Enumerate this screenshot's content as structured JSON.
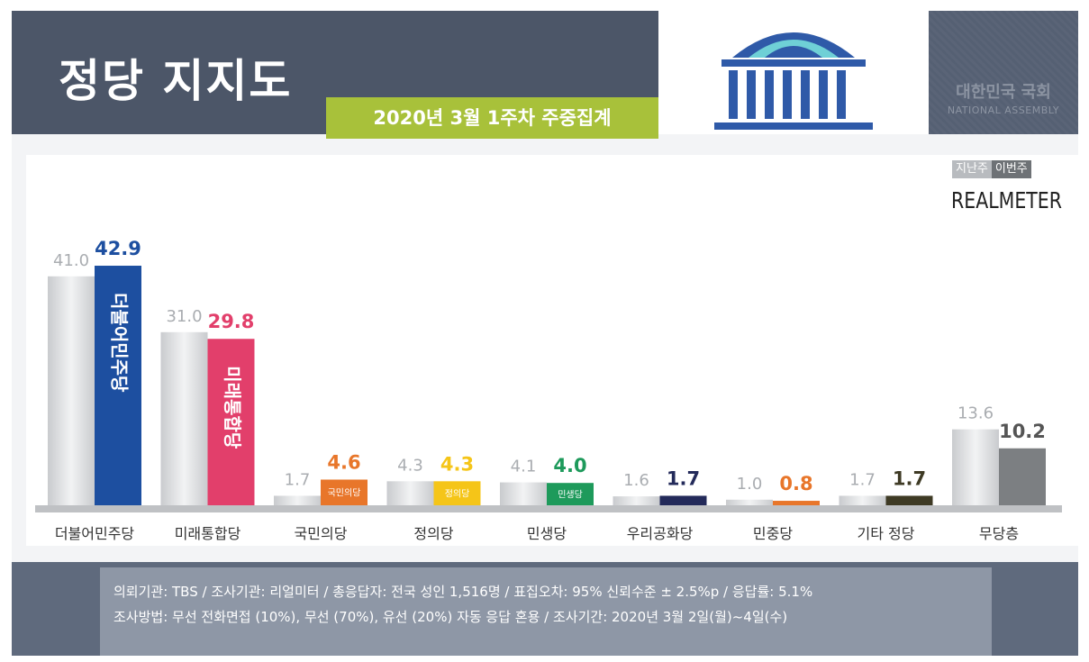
{
  "header": {
    "title": "정당 지지도",
    "subtitle": "2020년 3월 1주차 주중집계",
    "assembly_name_ko": "대한민국 국회",
    "assembly_name_en": "NATIONAL ASSEMBLY"
  },
  "legend": {
    "previous_label": "지난주",
    "current_label": "이번주",
    "brand": "REALMETER"
  },
  "colors": {
    "previous": "#cfd1d4",
    "deobureo": "#1d4fa0",
    "mirae": "#e23f6b",
    "kukmin": "#e8762a",
    "jeongui": "#f5c518",
    "minsaeng": "#1e9a5b",
    "uri": "#232a5a",
    "minjung": "#e8762a",
    "others": "#3e3a24",
    "independent": "#7c7f82"
  },
  "chart_data": {
    "type": "bar",
    "title": "정당 지지도",
    "subtitle": "2020년 3월 1주차 주중집계",
    "categories": [
      "더불어민주당",
      "미래통합당",
      "국민의당",
      "정의당",
      "민생당",
      "우리공화당",
      "민중당",
      "기타 정당",
      "무당층"
    ],
    "series": [
      {
        "name": "지난주",
        "values": [
          41.0,
          31.0,
          1.7,
          4.3,
          4.1,
          1.6,
          1.0,
          1.7,
          13.6
        ]
      },
      {
        "name": "이번주",
        "values": [
          42.9,
          29.8,
          4.6,
          4.3,
          4.0,
          1.7,
          0.8,
          1.7,
          10.2
        ]
      }
    ],
    "prev_labels": [
      "41.0",
      "31.0",
      "1.7",
      "4.3",
      "4.1",
      "1.6",
      "1.0",
      "1.7",
      "13.6"
    ],
    "curr_labels": [
      "42.9",
      "29.8",
      "4.6",
      "4.3",
      "4.0",
      "1.7",
      "0.8",
      "1.7",
      "10.2"
    ],
    "curr_label_colors": [
      "#1d4fa0",
      "#e23f6b",
      "#e8762a",
      "#f5c518",
      "#1e9a5b",
      "#232a5a",
      "#e8762a",
      "#3e3a24",
      "#555555"
    ],
    "bar_inner_labels": [
      "더불어민주당",
      "미래통합당",
      "국민의당",
      "정의당",
      "민생당",
      "",
      "",
      "",
      ""
    ],
    "ylim": [
      0,
      50
    ],
    "grid": false,
    "legend_position": "top-right"
  },
  "footer": {
    "line1": "의뢰기관:  TBS  /  조사기관:  리얼미터  /  총응답자:  전국 성인 1,516명  /  표집오차:  95% 신뢰수준 ± 2.5%p  /  응답률:  5.1%",
    "line2": "조사방법:  무선 전화면접 (10%), 무선 (70%), 유선 (20%)  자동 응답 혼용  /  조사기간:  2020년 3월 2일(월)~4일(수)"
  }
}
